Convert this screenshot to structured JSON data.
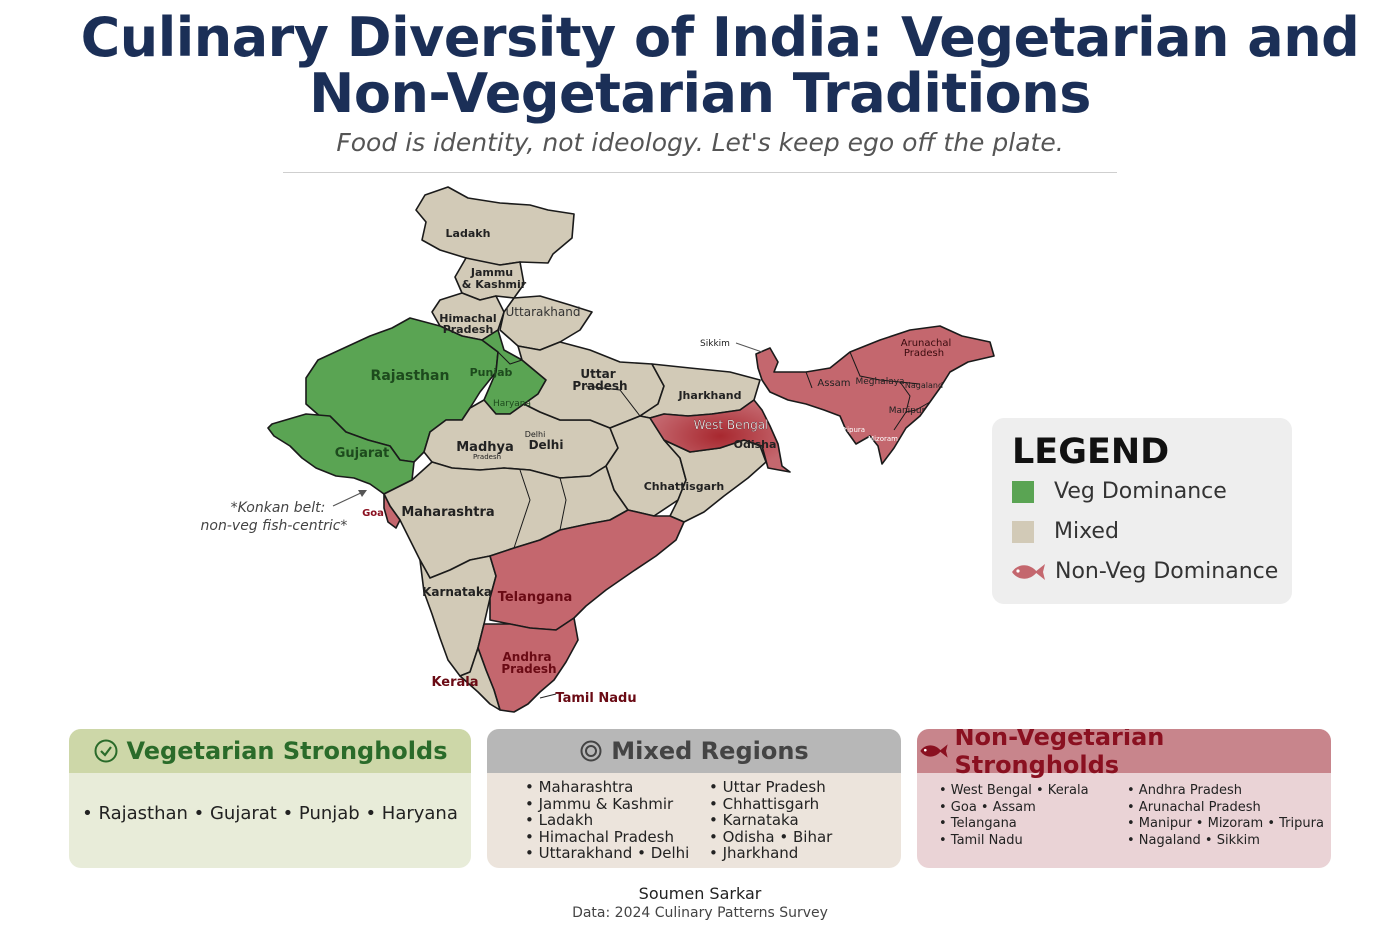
{
  "header": {
    "title_line1": "Culinary Diversity of India: Vegetarian and",
    "title_line2": "Non-Vegetarian Traditions",
    "subtitle": "Food is identity, not ideology. Let's keep ego off the plate."
  },
  "colors": {
    "veg": "#5aa453",
    "mixed": "#d2cab7",
    "nonveg": "#c4676e",
    "border": "#1a1a1a"
  },
  "map_labels": {
    "ladakh": "Ladakh",
    "jk": "Jammu",
    "jk2": "& Kashmir",
    "himachal": "Himachal",
    "himachal2": "Pradesh",
    "uttarakhand": "Uttarakhand",
    "rajasthan": "Rajasthan",
    "punjab": "Punjab",
    "haryana": "Haryana",
    "up": "Uttar",
    "up2": "Pradesh",
    "delhi_small": "Delhi",
    "delhi": "Delhi",
    "gujarat": "Gujarat",
    "madhya": "Madhya",
    "madhya2": "Pradesh",
    "jharkhand": "Jharkhand",
    "west_bengal": "West Bengal",
    "odisha": "Odisha",
    "chhattisgarh": "Chhattisgarh",
    "maharashtra": "Maharashtra",
    "goa": "Goa",
    "karnataka": "Karnataka",
    "telangana": "Telangana",
    "andhra": "Andhra",
    "andhra2": "Pradesh",
    "kerala": "Kerala",
    "tamil_nadu": "Tamil Nadu",
    "sikkim": "Sikkim",
    "arunachal": "Arunachal",
    "arunachal2": "Pradesh",
    "assam": "Assam",
    "meghalaya": "Meghalaya",
    "nagaland": "Nagaland",
    "manipur": "Manipur",
    "tripura": "Tripura",
    "mizoram": "Mizoram",
    "konkan1": "*Konkan belt:",
    "konkan2": "non-veg fish-centric*"
  },
  "legend": {
    "title": "LEGEND",
    "items": [
      {
        "label": "Veg Dominance",
        "color": "#5aa453"
      },
      {
        "label": "Mixed",
        "color": "#d2cab7"
      },
      {
        "label": "Non-Veg Dominance",
        "color": "#c4676e",
        "icon": "fish-icon"
      }
    ]
  },
  "cards": {
    "veg": {
      "title": "Vegetarian Strongholds",
      "icon": "check-circle-icon",
      "text": "• Rajasthan • Gujarat • Punjab • Haryana"
    },
    "mixed": {
      "title": "Mixed Regions",
      "icon": "target-circle-icon",
      "col1": [
        "• Maharashtra",
        "• Jammu & Kashmir",
        "• Ladakh",
        "• Himachal Pradesh",
        "• Uttarakhand • Delhi"
      ],
      "col2": [
        "• Uttar Pradesh",
        "• Chhattisgarh",
        "• Karnataka",
        "• Odisha • Bihar",
        "• Jharkhand"
      ]
    },
    "nonveg": {
      "title": "Non-Vegetarian Strongholds",
      "icon": "fish-icon",
      "col1": [
        "• West Bengal • Kerala",
        "• Goa • Assam",
        "• Telangana",
        "• Tamil Nadu"
      ],
      "col2": [
        "• Andhra Pradesh",
        "• Arunachal Pradesh",
        "• Manipur • Mizoram • Tripura",
        "• Nagaland • Sikkim"
      ]
    }
  },
  "footer": {
    "author": "Soumen Sarkar",
    "source": "Data: 2024 Culinary Patterns Survey"
  }
}
